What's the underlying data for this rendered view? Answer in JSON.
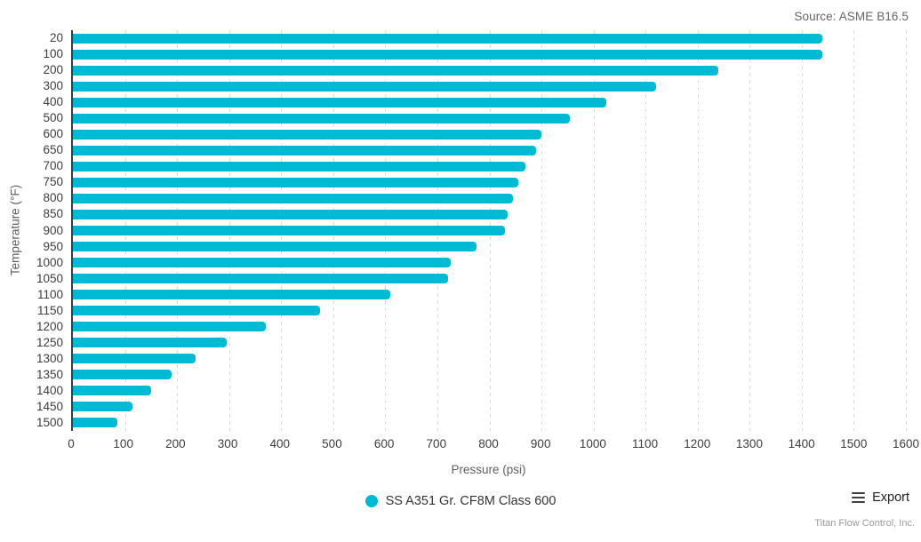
{
  "header": {
    "source": "Source: ASME B16.5"
  },
  "chart_data": {
    "type": "bar",
    "orientation": "horizontal",
    "title": "",
    "categories": [
      "20",
      "100",
      "200",
      "300",
      "400",
      "500",
      "600",
      "650",
      "700",
      "750",
      "800",
      "850",
      "900",
      "950",
      "1000",
      "1050",
      "1100",
      "1150",
      "1200",
      "1250",
      "1300",
      "1350",
      "1400",
      "1450",
      "1500"
    ],
    "series": [
      {
        "name": "SS A351 Gr. CF8M Class 600",
        "values": [
          1440,
          1440,
          1240,
          1120,
          1025,
          955,
          900,
          890,
          870,
          855,
          845,
          835,
          830,
          775,
          725,
          720,
          610,
          475,
          370,
          295,
          235,
          190,
          150,
          115,
          85
        ]
      }
    ],
    "xlabel": "Pressure (psi)",
    "ylabel": "Temperature (°F)",
    "xlim": [
      0,
      1600
    ],
    "x_ticks": [
      0,
      100,
      200,
      300,
      400,
      500,
      600,
      700,
      800,
      900,
      1000,
      1100,
      1200,
      1300,
      1400,
      1500,
      1600
    ],
    "grid": "vertical-dashed",
    "legend_position": "bottom-center",
    "bar_color": "#00bad3"
  },
  "legend": {
    "label": "SS A351 Gr. CF8M Class 600",
    "marker_color": "#00bad3"
  },
  "toolbar": {
    "export_label": "Export"
  },
  "footer": {
    "credit": "Titan Flow Control, Inc."
  },
  "colors": {
    "accent": "#00bad3",
    "axis_line": "#3b3b3b",
    "gridline": "#dcdcdc",
    "tick_label": "#3d3d3d",
    "axis_title": "#5f5f5f"
  }
}
